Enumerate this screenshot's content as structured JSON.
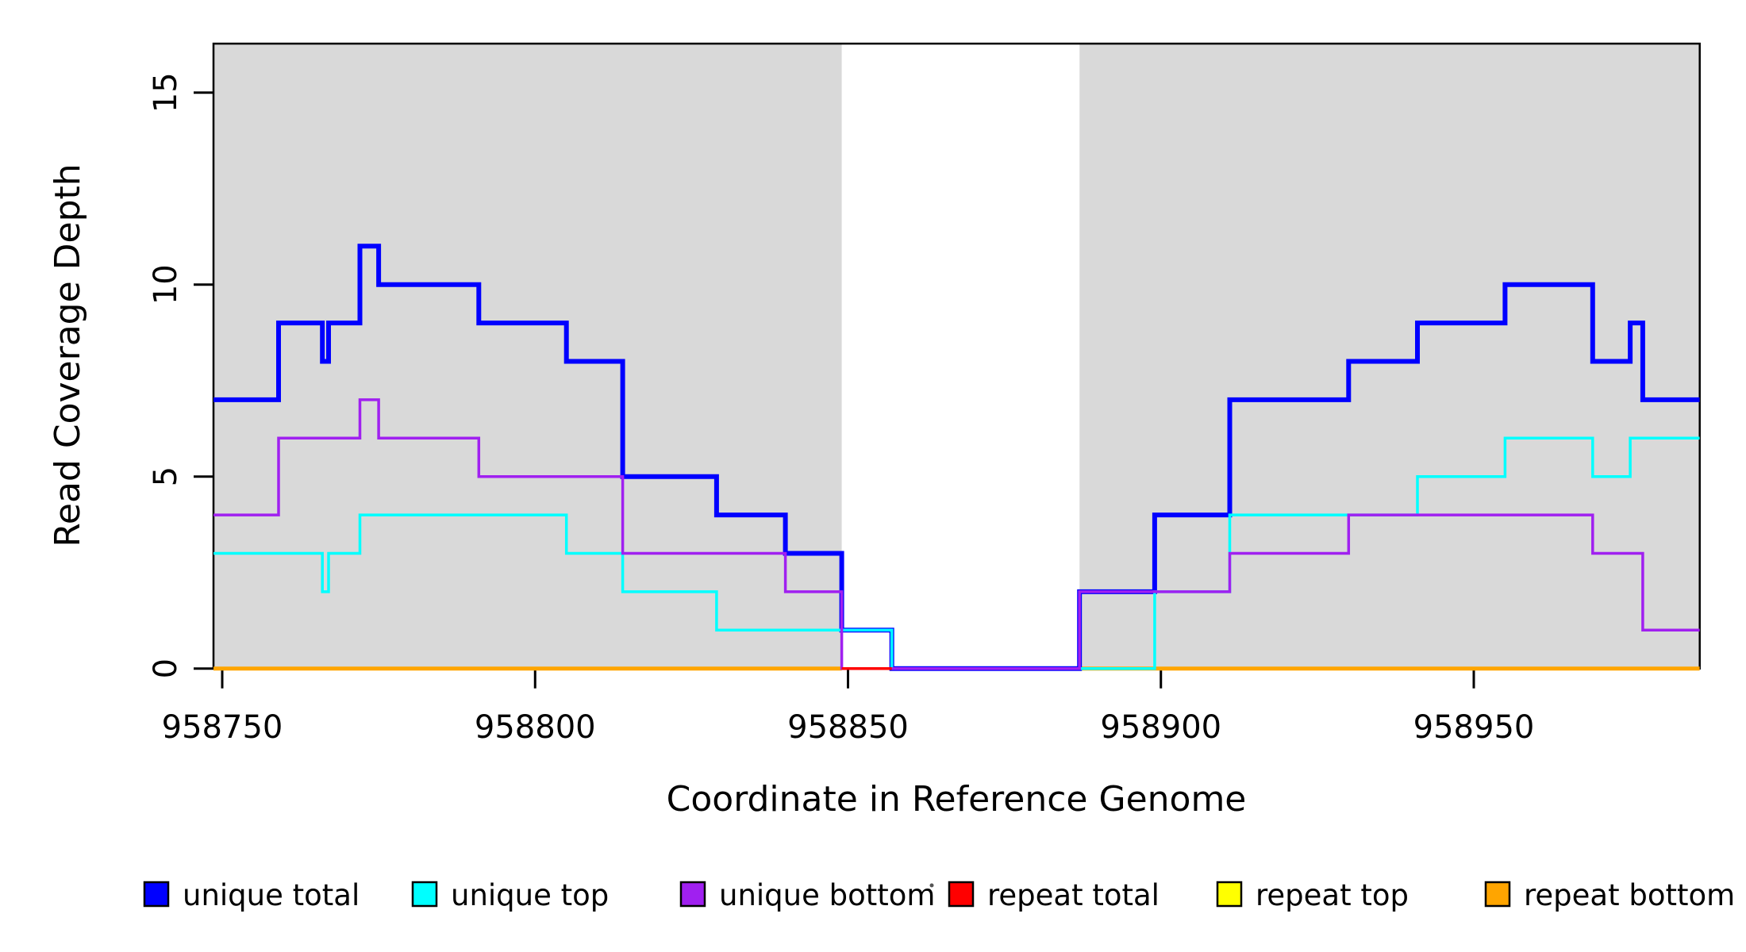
{
  "chart_data": {
    "type": "line",
    "subtype": "step",
    "title": "",
    "xlabel": "Coordinate in Reference Genome",
    "ylabel": "Read Coverage Depth",
    "xlim": [
      958748.6,
      958986.1
    ],
    "ylim": [
      0,
      16.27
    ],
    "grid": "off",
    "legend_position": "bottom",
    "x_ticks": {
      "values": [
        958750,
        958800,
        958850,
        958900,
        958950
      ],
      "labels": [
        "958750",
        "958800",
        "958850",
        "958900",
        "958950"
      ]
    },
    "y_ticks": {
      "values": [
        0,
        5,
        10,
        15
      ],
      "labels": [
        "0",
        "5",
        "10",
        "15"
      ]
    },
    "shaded_regions": {
      "color": "#D9D9D9",
      "note": "repeat-free reference segments shaded gray; white gap between",
      "x_ranges": [
        [
          958748.6,
          958849
        ],
        [
          958887,
          958986.1
        ]
      ]
    },
    "series": [
      {
        "name": "repeat top",
        "color": "#FFFF00",
        "segments": [
          [
            [
              958748.6,
              0
            ],
            [
              958849,
              0
            ]
          ]
        ]
      },
      {
        "name": "repeat bottom",
        "color": "#FFA500",
        "segments": [
          [
            [
              958748.6,
              0
            ],
            [
              958849,
              0
            ]
          ],
          [
            [
              958887,
              0
            ],
            [
              958986.1,
              0
            ]
          ]
        ]
      },
      {
        "name": "unique total",
        "color": "#0000FF",
        "segments": [
          [
            [
              958748.6,
              7
            ],
            [
              958759,
              9
            ],
            [
              958766,
              8
            ],
            [
              958767,
              9
            ],
            [
              958772,
              11
            ],
            [
              958775,
              10
            ],
            [
              958791,
              9
            ],
            [
              958805,
              8
            ],
            [
              958814,
              5
            ],
            [
              958829,
              4
            ],
            [
              958840,
              3
            ],
            [
              958849,
              1
            ],
            [
              958857,
              0
            ],
            [
              958887,
              2
            ],
            [
              958899,
              4
            ],
            [
              958911,
              7
            ],
            [
              958930,
              8
            ],
            [
              958941,
              9
            ],
            [
              958955,
              10
            ],
            [
              958969,
              8
            ],
            [
              958975,
              9
            ],
            [
              958977,
              7
            ],
            [
              958986.1,
              7
            ]
          ]
        ]
      },
      {
        "name": "unique top",
        "color": "#00FFFF",
        "segments": [
          [
            [
              958748.6,
              3
            ],
            [
              958766,
              2
            ],
            [
              958767,
              3
            ],
            [
              958772,
              4
            ],
            [
              958805,
              3
            ],
            [
              958814,
              2
            ],
            [
              958829,
              1
            ],
            [
              958857,
              0
            ],
            [
              958899,
              2
            ],
            [
              958911,
              4
            ],
            [
              958941,
              5
            ],
            [
              958955,
              6
            ],
            [
              958969,
              5
            ],
            [
              958975,
              6
            ],
            [
              958986.1,
              6
            ]
          ]
        ]
      },
      {
        "name": "unique bottom",
        "color": "#A020F0",
        "segments": [
          [
            [
              958748.6,
              4
            ],
            [
              958759,
              6
            ],
            [
              958772,
              7
            ],
            [
              958775,
              6
            ],
            [
              958791,
              5
            ],
            [
              958814,
              3
            ],
            [
              958840,
              2
            ],
            [
              958849,
              0
            ],
            [
              958887,
              2
            ],
            [
              958911,
              3
            ],
            [
              958930,
              4
            ],
            [
              958969,
              3
            ],
            [
              958977,
              1
            ],
            [
              958986.1,
              1
            ]
          ]
        ]
      },
      {
        "name": "repeat total",
        "color": "#FF0000",
        "segments": [
          [
            [
              958849,
              0
            ],
            [
              958857,
              0
            ]
          ]
        ]
      }
    ],
    "legend": {
      "items": [
        {
          "label": "unique total",
          "color": "#0000FF"
        },
        {
          "label": "unique top",
          "color": "#00FFFF"
        },
        {
          "label": "unique bottom",
          "color": "#A020F0"
        },
        {
          "label": "repeat total",
          "color": "#FF0000"
        },
        {
          "label": "repeat top",
          "color": "#FFFF00"
        },
        {
          "label": "repeat bottom",
          "color": "#FFA500"
        }
      ]
    },
    "annotations": {
      "stray_dot": "·"
    }
  }
}
